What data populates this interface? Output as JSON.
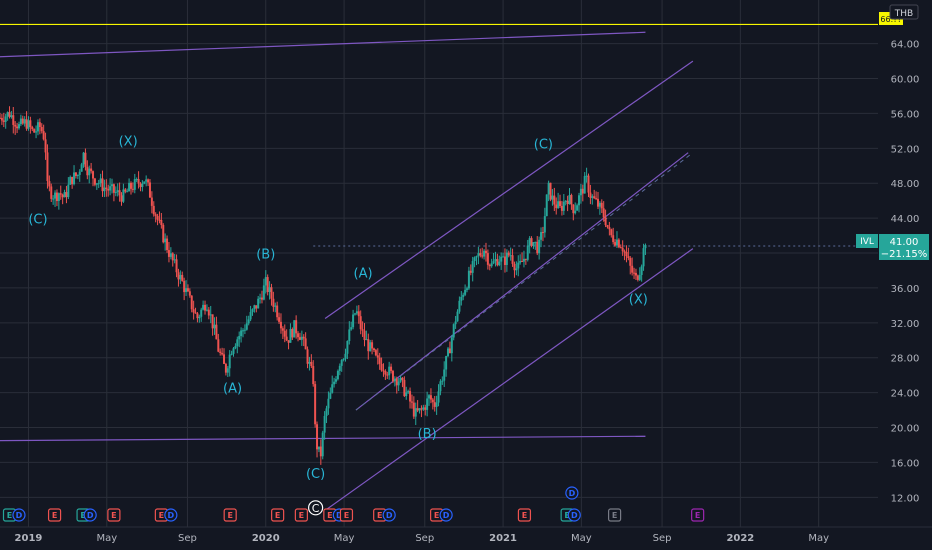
{
  "chart_data": {
    "type": "candlestick",
    "symbol": "IVL",
    "currency": "THB",
    "last_price": "41.00",
    "change": "−21.15%",
    "reference_level": "66.??",
    "y_ticks": [
      "64.00",
      "60.00",
      "56.00",
      "52.00",
      "48.00",
      "44.00",
      "40.00",
      "36.00",
      "32.00",
      "28.00",
      "24.00",
      "20.00",
      "16.00",
      "12.00"
    ],
    "ylim": [
      8.6,
      69
    ],
    "x_ticks": [
      "2019",
      "May",
      "Sep",
      "2020",
      "May",
      "Sep",
      "2021",
      "May",
      "Sep",
      "2022",
      "May"
    ],
    "xlim": [
      2018.88,
      2022.58
    ],
    "grid": true,
    "price_path": [
      [
        2018.88,
        55.5
      ],
      [
        2018.92,
        56
      ],
      [
        2018.96,
        54.5
      ],
      [
        2018.99,
        55
      ],
      [
        2019.02,
        53.8
      ],
      [
        2019.05,
        54.5
      ],
      [
        2019.07,
        53
      ],
      [
        2019.08,
        47.5
      ],
      [
        2019.11,
        46.5
      ],
      [
        2019.13,
        47
      ],
      [
        2019.15,
        46.2
      ],
      [
        2019.18,
        48.5
      ],
      [
        2019.21,
        49
      ],
      [
        2019.23,
        51.5
      ],
      [
        2019.25,
        49.5
      ],
      [
        2019.28,
        48.5
      ],
      [
        2019.32,
        47.5
      ],
      [
        2019.36,
        47
      ],
      [
        2019.4,
        46.5
      ],
      [
        2019.43,
        47.5
      ],
      [
        2019.47,
        48.2
      ],
      [
        2019.49,
        48.5
      ],
      [
        2019.51,
        47
      ],
      [
        2019.53,
        45
      ],
      [
        2019.56,
        42.5
      ],
      [
        2019.6,
        39.5
      ],
      [
        2019.65,
        36.5
      ],
      [
        2019.68,
        34.5
      ],
      [
        2019.71,
        32.5
      ],
      [
        2019.75,
        34.5
      ],
      [
        2019.78,
        31.5
      ],
      [
        2019.8,
        29
      ],
      [
        2019.83,
        26.5
      ],
      [
        2019.86,
        29.5
      ],
      [
        2019.9,
        31
      ],
      [
        2019.94,
        33
      ],
      [
        2019.97,
        34.5
      ],
      [
        2020.0,
        36.5
      ],
      [
        2020.03,
        34.5
      ],
      [
        2020.06,
        32.5
      ],
      [
        2020.09,
        30
      ],
      [
        2020.12,
        31.5
      ],
      [
        2020.15,
        30.5
      ],
      [
        2020.18,
        27.5
      ],
      [
        2020.2,
        25.5
      ],
      [
        2020.21,
        18.5
      ],
      [
        2020.23,
        16.5
      ],
      [
        2020.25,
        21.5
      ],
      [
        2020.28,
        24.5
      ],
      [
        2020.31,
        27.5
      ],
      [
        2020.33,
        28.5
      ],
      [
        2020.36,
        31.5
      ],
      [
        2020.38,
        33.5
      ],
      [
        2020.41,
        30.5
      ],
      [
        2020.44,
        29
      ],
      [
        2020.47,
        27.5
      ],
      [
        2020.5,
        27
      ],
      [
        2020.53,
        26
      ],
      [
        2020.56,
        25.5
      ],
      [
        2020.6,
        23.5
      ],
      [
        2020.63,
        21.5
      ],
      [
        2020.66,
        22
      ],
      [
        2020.69,
        23.5
      ],
      [
        2020.71,
        22.5
      ],
      [
        2020.74,
        25.5
      ],
      [
        2020.77,
        28.5
      ],
      [
        2020.8,
        32.5
      ],
      [
        2020.83,
        35.5
      ],
      [
        2020.86,
        37.5
      ],
      [
        2020.89,
        39.5
      ],
      [
        2020.92,
        40.5
      ],
      [
        2020.95,
        38.5
      ],
      [
        2020.98,
        39.5
      ],
      [
        2021.0,
        39
      ],
      [
        2021.03,
        40
      ],
      [
        2021.06,
        38
      ],
      [
        2021.09,
        39.5
      ],
      [
        2021.12,
        41.5
      ],
      [
        2021.15,
        40.5
      ],
      [
        2021.17,
        43
      ],
      [
        2021.19,
        47.5
      ],
      [
        2021.21,
        46
      ],
      [
        2021.24,
        45
      ],
      [
        2021.27,
        46.5
      ],
      [
        2021.3,
        45
      ],
      [
        2021.33,
        47
      ],
      [
        2021.35,
        48.5
      ],
      [
        2021.37,
        46.5
      ],
      [
        2021.4,
        45.5
      ],
      [
        2021.43,
        44
      ],
      [
        2021.45,
        42
      ],
      [
        2021.48,
        41.5
      ],
      [
        2021.5,
        41
      ],
      [
        2021.52,
        39.5
      ],
      [
        2021.54,
        38
      ],
      [
        2021.56,
        37
      ],
      [
        2021.58,
        38.5
      ],
      [
        2021.6,
        41.5
      ]
    ],
    "channel_lines": [
      {
        "from": [
          2018.88,
          62.5
        ],
        "to": [
          2021.6,
          65.3
        ]
      },
      {
        "from": [
          2018.88,
          18.5
        ],
        "to": [
          2021.6,
          19.0
        ]
      },
      {
        "from": [
          2020.25,
          32.5
        ],
        "to": [
          2021.8,
          62.0
        ]
      },
      {
        "from": [
          2020.25,
          10.5
        ],
        "to": [
          2021.8,
          40.5
        ]
      },
      {
        "from": [
          2020.38,
          22.0
        ],
        "to": [
          2021.78,
          51.5
        ]
      }
    ],
    "dashed_price_line": {
      "from": [
        2020.2,
        40.8
      ],
      "to": [
        2022.58,
        40.8
      ]
    },
    "wave_labels": [
      {
        "text": "(C)",
        "x": 2019.04,
        "y": 43.4
      },
      {
        "text": "(X)",
        "x": 2019.42,
        "y": 52.3
      },
      {
        "text": "(B)",
        "x": 2020.0,
        "y": 39.4
      },
      {
        "text": "(A)",
        "x": 2019.86,
        "y": 24.0
      },
      {
        "text": "(A)",
        "x": 2020.41,
        "y": 37.2
      },
      {
        "text": "(C)",
        "x": 2020.21,
        "y": 14.2
      },
      {
        "text": "(B)",
        "x": 2020.68,
        "y": 18.8
      },
      {
        "text": "(C)",
        "x": 2021.17,
        "y": 52.0
      },
      {
        "text": "(X)",
        "x": 2021.57,
        "y": 34.2
      }
    ],
    "circle_c_label": {
      "text": "C",
      "x": 2020.21,
      "y": 10.8
    },
    "events": [
      {
        "text": "E",
        "color": "#26a69a",
        "x": 2018.92
      },
      {
        "text": "D",
        "color": "#2962ff",
        "x": 2018.96
      },
      {
        "text": "E",
        "color": "#ef5350",
        "x": 2019.11
      },
      {
        "text": "E",
        "color": "#26a69a",
        "x": 2019.23
      },
      {
        "text": "D",
        "color": "#2962ff",
        "x": 2019.26
      },
      {
        "text": "E",
        "color": "#ef5350",
        "x": 2019.36
      },
      {
        "text": "E",
        "color": "#ef5350",
        "x": 2019.56
      },
      {
        "text": "D",
        "color": "#2962ff",
        "x": 2019.6
      },
      {
        "text": "E",
        "color": "#ef5350",
        "x": 2019.85
      },
      {
        "text": "E",
        "color": "#ef5350",
        "x": 2020.05
      },
      {
        "text": "E",
        "color": "#ef5350",
        "x": 2020.15
      },
      {
        "text": "E",
        "color": "#ef5350",
        "x": 2020.27
      },
      {
        "text": "D",
        "color": "#2962ff",
        "x": 2020.31
      },
      {
        "text": "E",
        "color": "#ef5350",
        "x": 2020.34
      },
      {
        "text": "E",
        "color": "#ef5350",
        "x": 2020.48
      },
      {
        "text": "D",
        "color": "#2962ff",
        "x": 2020.52
      },
      {
        "text": "E",
        "color": "#ef5350",
        "x": 2020.72
      },
      {
        "text": "D",
        "color": "#2962ff",
        "x": 2020.76
      },
      {
        "text": "E",
        "color": "#ef5350",
        "x": 2021.09
      },
      {
        "text": "E",
        "color": "#26a69a",
        "x": 2021.27
      },
      {
        "text": "D",
        "color": "#2962ff",
        "x": 2021.3
      },
      {
        "text": "D",
        "color": "#2962ff",
        "x": 2021.29,
        "row": "upper"
      },
      {
        "text": "E",
        "color": "#787b86",
        "x": 2021.47
      },
      {
        "text": "E",
        "color": "#9c27b0",
        "x": 2021.82
      }
    ],
    "colors": {
      "background": "#131722",
      "up": "#26a69a",
      "down": "#ef5350",
      "grid": "#2a2e39",
      "channel": "#7e57c2",
      "ref_line": "#f7f700",
      "label": "#29b6d6",
      "dashed": "#5b6b9a"
    }
  },
  "ui": {
    "symbol_label": "IVL",
    "price_label": "41.00",
    "change_label": "−21.15%",
    "currency_label": "THB",
    "ref_label": "66.??"
  }
}
